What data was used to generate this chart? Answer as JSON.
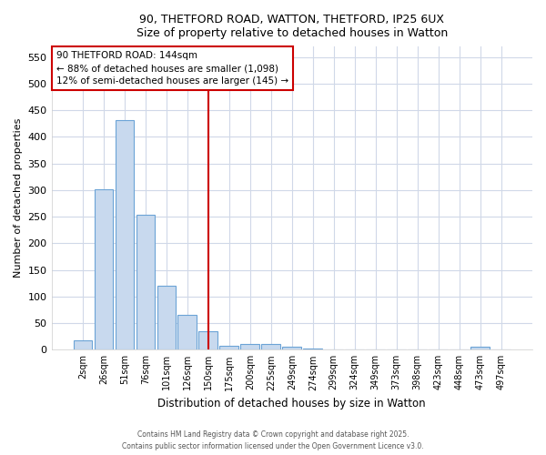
{
  "title_line1": "90, THETFORD ROAD, WATTON, THETFORD, IP25 6UX",
  "title_line2": "Size of property relative to detached houses in Watton",
  "xlabel": "Distribution of detached houses by size in Watton",
  "ylabel": "Number of detached properties",
  "categories": [
    "2sqm",
    "26sqm",
    "51sqm",
    "76sqm",
    "101sqm",
    "126sqm",
    "150sqm",
    "175sqm",
    "200sqm",
    "225sqm",
    "249sqm",
    "274sqm",
    "299sqm",
    "324sqm",
    "349sqm",
    "373sqm",
    "398sqm",
    "423sqm",
    "448sqm",
    "473sqm",
    "497sqm"
  ],
  "values": [
    18,
    302,
    432,
    253,
    120,
    65,
    35,
    8,
    10,
    11,
    5,
    2,
    1,
    0,
    0,
    0,
    0,
    0,
    0,
    5,
    0
  ],
  "bar_color": "#c8d9ee",
  "bar_edgecolor": "#6ba3d6",
  "background_color": "#ffffff",
  "plot_bg_color": "#ffffff",
  "grid_color": "#d0d8e8",
  "vline_x": 6,
  "vline_color": "#cc0000",
  "annotation_text": "90 THETFORD ROAD: 144sqm\n← 88% of detached houses are smaller (1,098)\n12% of semi-detached houses are larger (145) →",
  "annotation_box_color": "#ffffff",
  "annotation_box_edgecolor": "#cc0000",
  "ylim": [
    0,
    570
  ],
  "yticks": [
    0,
    50,
    100,
    150,
    200,
    250,
    300,
    350,
    400,
    450,
    500,
    550
  ],
  "footer_line1": "Contains HM Land Registry data © Crown copyright and database right 2025.",
  "footer_line2": "Contains public sector information licensed under the Open Government Licence v3.0."
}
